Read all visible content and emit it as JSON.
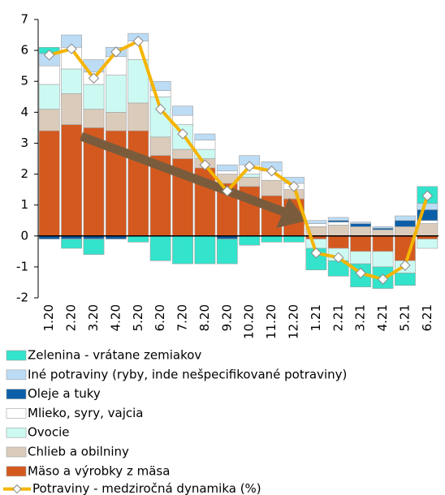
{
  "chart_data": {
    "type": "bar",
    "categories": [
      "1.20",
      "2.20",
      "3.20",
      "4.20",
      "5.20",
      "6.20",
      "7.20",
      "8.20",
      "9.20",
      "10.20",
      "11.20",
      "12.20",
      "1.21",
      "2.21",
      "3.21",
      "4.21",
      "5.21",
      "6.21"
    ],
    "series": [
      {
        "name": "Zelenina - vrátane zemiakov",
        "color": "#33e3cb",
        "values": [
          0.2,
          -0.3,
          -0.5,
          0,
          -0.2,
          -0.8,
          -0.9,
          -0.9,
          -0.8,
          -0.3,
          -0.2,
          -0.2,
          -0.7,
          -0.5,
          -0.75,
          -0.7,
          -0.4,
          0.55
        ]
      },
      {
        "name": "Iné potraviny (ryby, inde nešpecifikované potraviny)",
        "color": "#bcdcf5",
        "values": [
          0.4,
          0.4,
          0.4,
          0.3,
          0.25,
          0.3,
          0.3,
          0.2,
          0.2,
          0.3,
          0.3,
          0.2,
          0.1,
          0.1,
          0.05,
          0.05,
          0.15,
          0.2
        ]
      },
      {
        "name": "Oleje a tuky",
        "color": "#0b5fa8",
        "values": [
          -0.1,
          -0.1,
          -0.1,
          -0.1,
          0,
          0,
          0,
          0,
          -0.1,
          0,
          0,
          0,
          0,
          0.05,
          0.1,
          0.05,
          0.2,
          0.35
        ]
      },
      {
        "name": "Mlieko, syry, vajcia",
        "color": "#ffffff",
        "values": [
          0.6,
          0.7,
          0.4,
          0.6,
          0.6,
          0.2,
          0.3,
          0.3,
          0.1,
          0.3,
          0.3,
          0.2,
          0.1,
          0.1,
          0,
          0,
          0,
          0.1
        ]
      },
      {
        "name": "Ovocie",
        "color": "#ccfaf3",
        "values": [
          0.8,
          0.8,
          0.8,
          1.2,
          1.4,
          1.3,
          0.8,
          0.3,
          0,
          0.1,
          0,
          0,
          -0.3,
          -0.4,
          -0.4,
          -0.5,
          -0.4,
          -0.3
        ]
      },
      {
        "name": "Chlieb a obilniny",
        "color": "#dacbbb",
        "values": [
          0.7,
          1.0,
          0.6,
          0.6,
          0.9,
          0.6,
          0.3,
          0.3,
          0.3,
          0.3,
          0.5,
          0.3,
          0.3,
          0.35,
          0.3,
          0.2,
          0.3,
          0.4
        ]
      },
      {
        "name": "Mäso a výrobky z mäsa",
        "color": "#d4591f",
        "values": [
          3.4,
          3.6,
          3.5,
          3.4,
          3.4,
          2.6,
          2.5,
          2.2,
          1.7,
          1.6,
          1.3,
          1.2,
          -0.1,
          -0.4,
          -0.5,
          -0.5,
          -0.8,
          -0.1
        ]
      }
    ],
    "line": {
      "name": "Potraviny - medziročná dynamika (%)",
      "color": "#f5b400",
      "values": [
        5.85,
        6.05,
        5.1,
        5.95,
        6.3,
        4.1,
        3.3,
        2.3,
        1.45,
        2.25,
        2.1,
        1.6,
        -0.55,
        -0.7,
        -1.2,
        -1.4,
        -0.95,
        1.3
      ]
    },
    "ylim": [
      -2,
      7
    ],
    "yticks": [
      -2,
      -1,
      0,
      1,
      2,
      3,
      4,
      5,
      6,
      7
    ]
  }
}
